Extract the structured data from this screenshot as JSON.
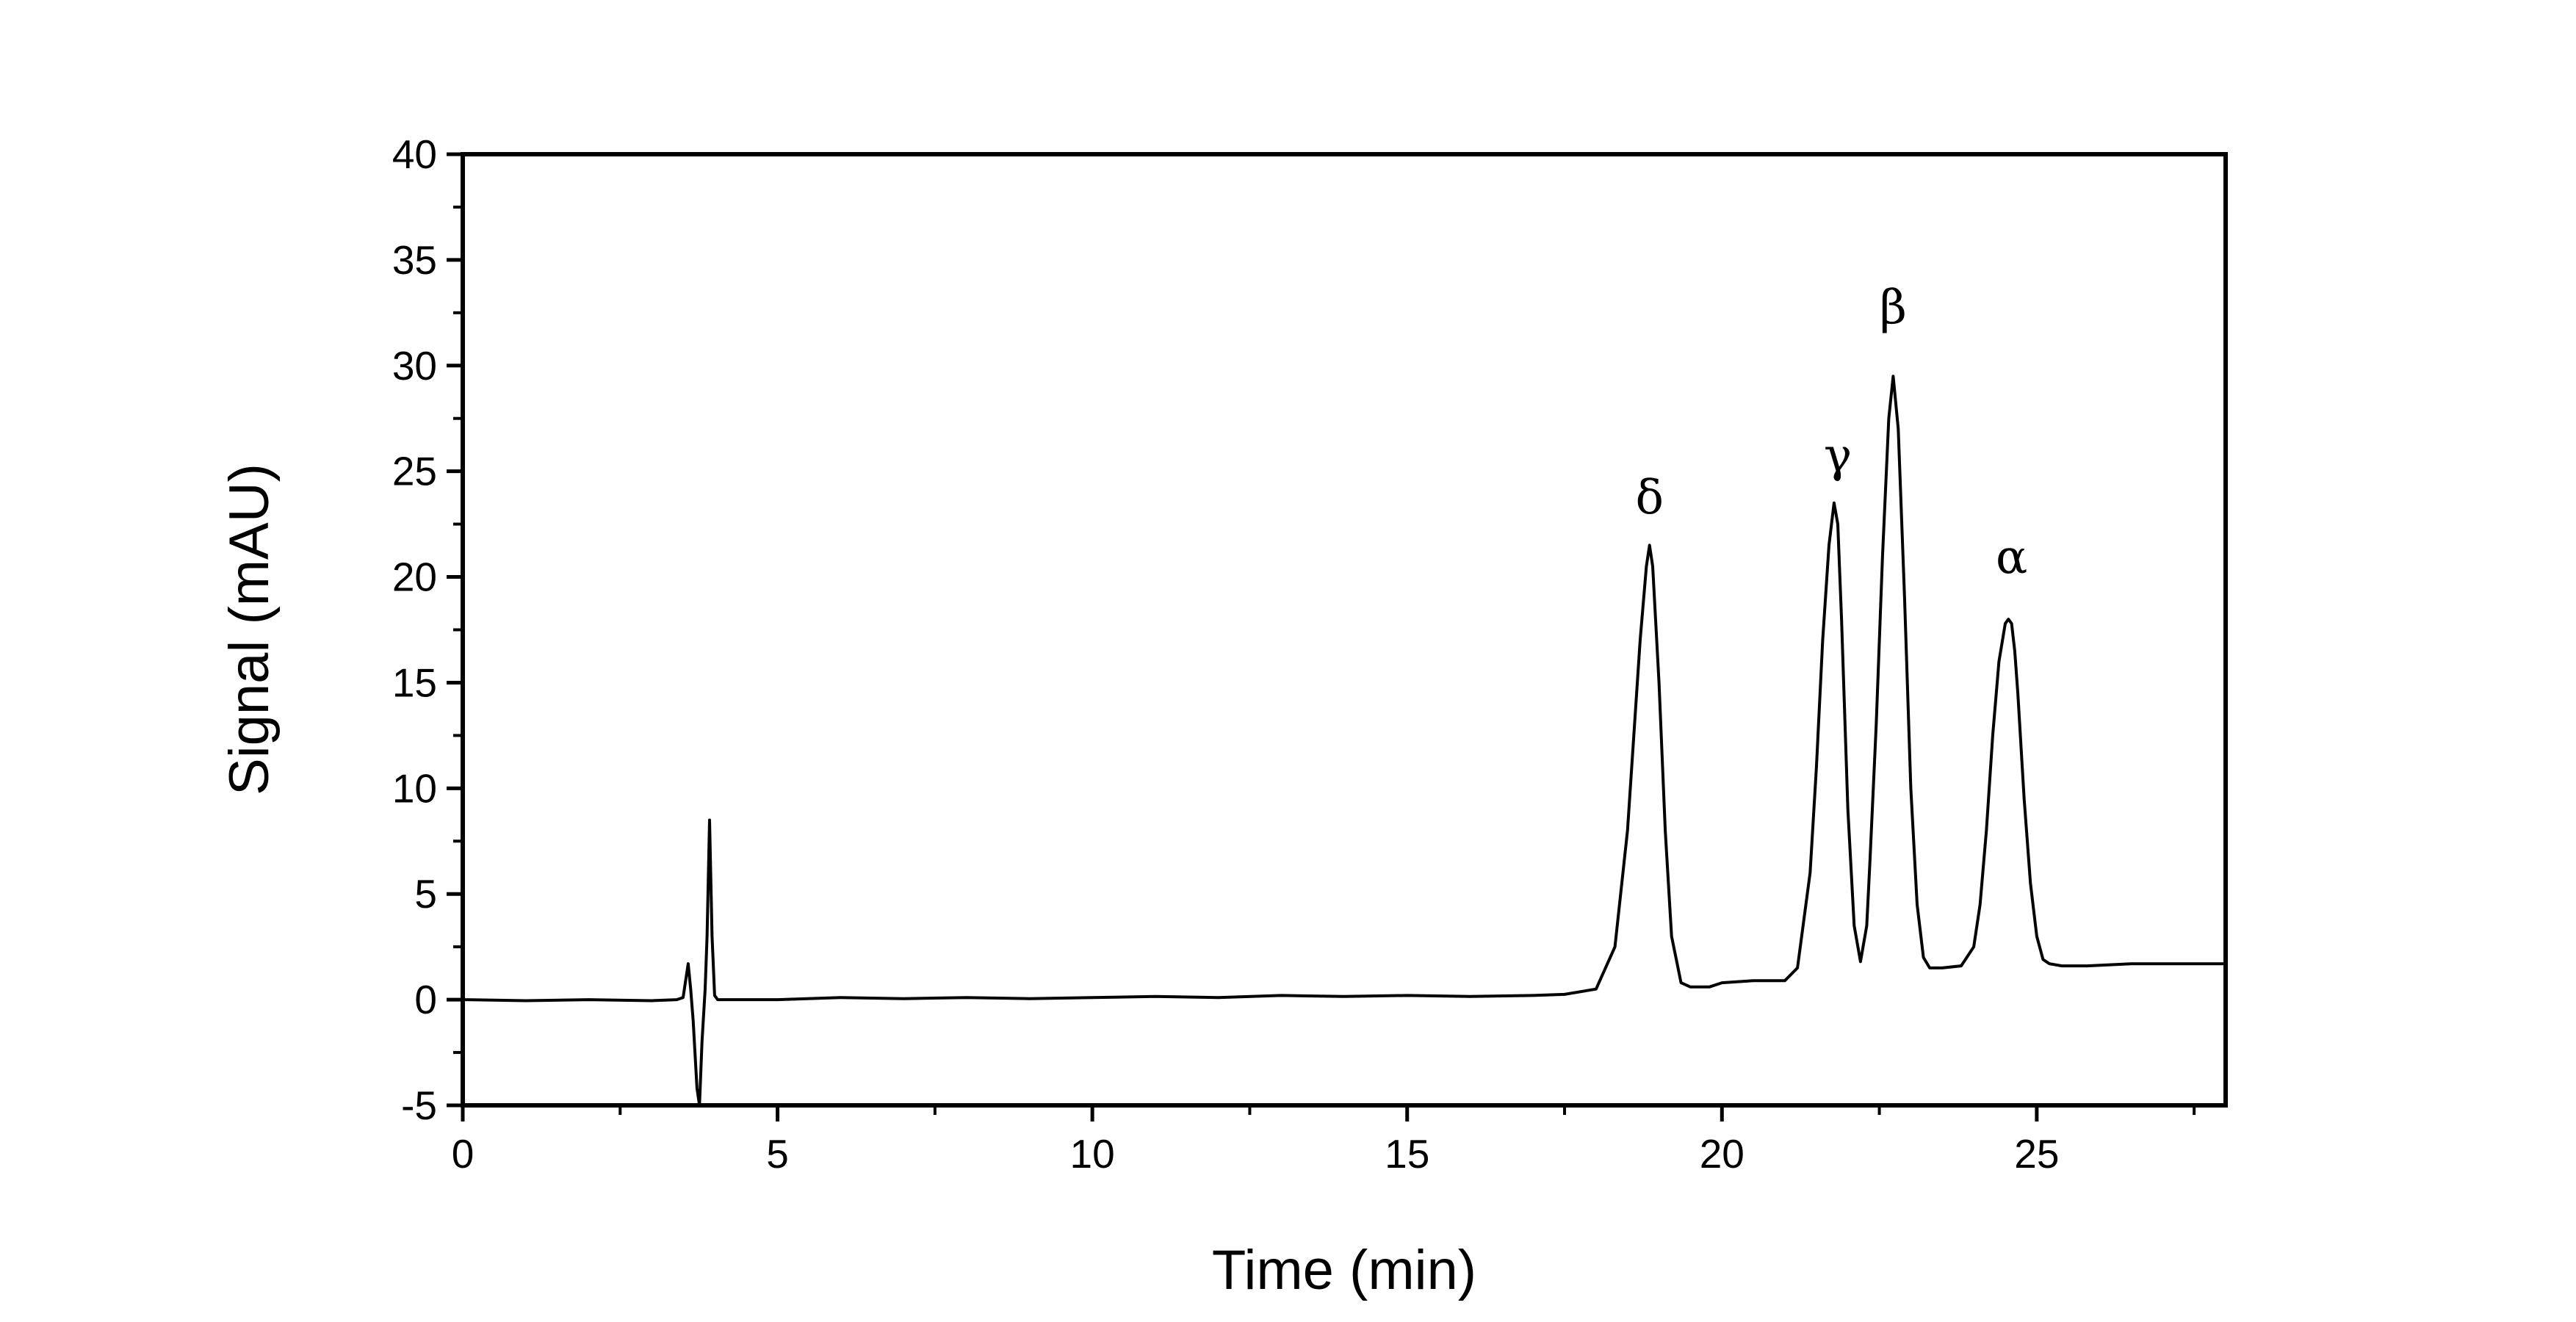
{
  "chart_data": {
    "type": "line",
    "title": "",
    "xlabel": "Time (min)",
    "ylabel": "Signal (mAU)",
    "xlim": [
      0,
      28
    ],
    "ylim": [
      -5,
      40
    ],
    "x_ticks": [
      0,
      5,
      10,
      15,
      20,
      25
    ],
    "x_tick_labels": [
      "0",
      "5",
      "10",
      "15",
      "20",
      "25"
    ],
    "y_ticks": [
      -5,
      0,
      5,
      10,
      15,
      20,
      25,
      30,
      35,
      40
    ],
    "y_tick_labels": [
      "-5",
      "0",
      "5",
      "10",
      "15",
      "20",
      "25",
      "30",
      "35",
      "40"
    ],
    "grid": false,
    "legend": "none",
    "line_color": "#000000",
    "series": [
      {
        "x": [
          0,
          1,
          2,
          3,
          3.4,
          3.5,
          3.58,
          3.62,
          3.66,
          3.72,
          3.76,
          3.8,
          3.85,
          3.88,
          3.92,
          3.96,
          4.0,
          4.05,
          4.2,
          5,
          6,
          7,
          8,
          9,
          10,
          11,
          12,
          13,
          14,
          15,
          16,
          17,
          17.5,
          18.0,
          18.3,
          18.5,
          18.6,
          18.7,
          18.8,
          18.85,
          18.9,
          19.0,
          19.1,
          19.2,
          19.35,
          19.5,
          19.8,
          20.0,
          20.5,
          21.0,
          21.2,
          21.4,
          21.5,
          21.6,
          21.7,
          21.78,
          21.84,
          21.9,
          22.0,
          22.1,
          22.2,
          22.3,
          22.35,
          22.45,
          22.55,
          22.65,
          22.72,
          22.8,
          22.9,
          23.0,
          23.1,
          23.2,
          23.3,
          23.5,
          23.8,
          24.0,
          24.1,
          24.2,
          24.3,
          24.4,
          24.5,
          24.55,
          24.6,
          24.65,
          24.7,
          24.8,
          24.9,
          25.0,
          25.1,
          25.2,
          25.4,
          25.8,
          26.5,
          27.5,
          28.0
        ],
        "y": [
          0.0,
          -0.05,
          0.0,
          -0.05,
          0.0,
          0.1,
          1.7,
          0.5,
          -1.0,
          -4.2,
          -5.0,
          -2.0,
          0.5,
          3.0,
          8.5,
          3.0,
          0.2,
          0.0,
          0.0,
          0.0,
          0.1,
          0.05,
          0.1,
          0.05,
          0.1,
          0.15,
          0.1,
          0.2,
          0.15,
          0.2,
          0.15,
          0.2,
          0.25,
          0.5,
          2.5,
          8.0,
          12.5,
          17.0,
          20.5,
          21.5,
          20.5,
          15.0,
          8.0,
          3.0,
          0.8,
          0.6,
          0.6,
          0.8,
          0.9,
          0.9,
          1.5,
          6.0,
          11.0,
          17.0,
          21.5,
          23.5,
          22.5,
          18.0,
          9.0,
          3.5,
          1.8,
          3.5,
          6.5,
          13.0,
          21.0,
          27.5,
          29.5,
          27.0,
          19.0,
          10.0,
          4.5,
          2.0,
          1.5,
          1.5,
          1.6,
          2.5,
          4.5,
          8.0,
          12.5,
          16.0,
          17.8,
          18.0,
          17.8,
          16.5,
          14.5,
          9.5,
          5.5,
          3.0,
          1.9,
          1.7,
          1.6,
          1.6,
          1.7,
          1.7,
          1.7
        ]
      }
    ],
    "annotations": [
      {
        "text": "δ",
        "x": 18.85,
        "y": 23.0
      },
      {
        "text": "γ",
        "x": 21.84,
        "y": 25.0
      },
      {
        "text": "β",
        "x": 22.72,
        "y": 32.0
      },
      {
        "text": "α",
        "x": 24.6,
        "y": 20.2
      }
    ]
  }
}
